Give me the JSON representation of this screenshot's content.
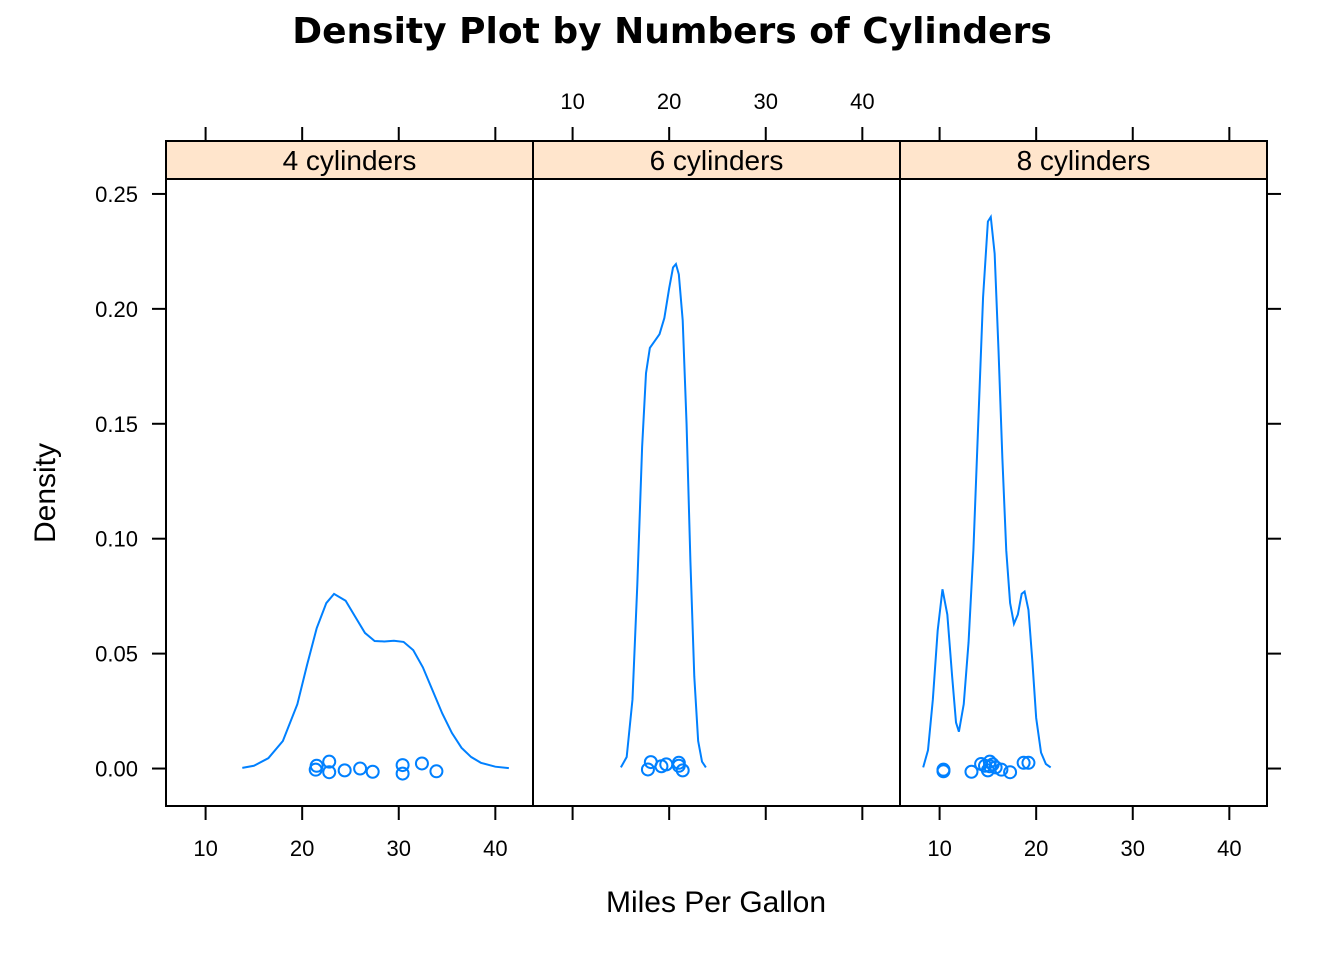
{
  "chart_data": {
    "type": "line",
    "title": "Density Plot by Numbers of Cylinders",
    "xlabel": "Miles Per Gallon",
    "ylabel": "Density",
    "xlim": [
      5.9,
      43.9
    ],
    "ylim": [
      -0.0163,
      0.2565
    ],
    "x_ticks": [
      10,
      20,
      30,
      40
    ],
    "y_ticks": [
      0.0,
      0.05,
      0.1,
      0.15,
      0.2,
      0.25
    ],
    "y_tick_labels": [
      "0.00",
      "0.05",
      "0.10",
      "0.15",
      "0.20",
      "0.25"
    ],
    "grid": false,
    "legend": "none",
    "colors": {
      "series": "#0080ff",
      "strip": "#ffe5cc",
      "frame": "#000000"
    },
    "panels": [
      {
        "strip": "4 cylinders",
        "curve": [
          [
            13.8,
            0.0003
          ],
          [
            15.0,
            0.0012
          ],
          [
            16.5,
            0.0045
          ],
          [
            18.0,
            0.012
          ],
          [
            19.5,
            0.028
          ],
          [
            20.5,
            0.045
          ],
          [
            21.5,
            0.061
          ],
          [
            22.5,
            0.072
          ],
          [
            23.3,
            0.076
          ],
          [
            24.5,
            0.073
          ],
          [
            25.5,
            0.066
          ],
          [
            26.5,
            0.059
          ],
          [
            27.5,
            0.0555
          ],
          [
            28.5,
            0.0553
          ],
          [
            29.5,
            0.0556
          ],
          [
            30.5,
            0.0551
          ],
          [
            31.5,
            0.0515
          ],
          [
            32.5,
            0.044
          ],
          [
            33.5,
            0.034
          ],
          [
            34.5,
            0.024
          ],
          [
            35.5,
            0.0155
          ],
          [
            36.5,
            0.009
          ],
          [
            37.5,
            0.005
          ],
          [
            38.5,
            0.0025
          ],
          [
            40.0,
            0.0008
          ],
          [
            41.4,
            0.0002
          ]
        ],
        "points": [
          [
            22.8,
            0.003
          ],
          [
            24.4,
            -0.0008
          ],
          [
            22.8,
            -0.0016
          ],
          [
            32.4,
            0.0022
          ],
          [
            30.4,
            0.0015
          ],
          [
            33.9,
            -0.0012
          ],
          [
            21.5,
            0.0012
          ],
          [
            27.3,
            -0.0014
          ],
          [
            26.0,
            0.0
          ],
          [
            30.4,
            -0.0022
          ],
          [
            21.4,
            -0.0005
          ]
        ]
      },
      {
        "strip": "6 cylinders",
        "curve": [
          [
            15.0,
            0.0005
          ],
          [
            15.6,
            0.005
          ],
          [
            16.2,
            0.03
          ],
          [
            16.7,
            0.08
          ],
          [
            17.2,
            0.14
          ],
          [
            17.6,
            0.172
          ],
          [
            18.0,
            0.183
          ],
          [
            18.5,
            0.186
          ],
          [
            19.0,
            0.189
          ],
          [
            19.5,
            0.196
          ],
          [
            20.0,
            0.209
          ],
          [
            20.4,
            0.218
          ],
          [
            20.7,
            0.2195
          ],
          [
            21.0,
            0.215
          ],
          [
            21.4,
            0.195
          ],
          [
            21.8,
            0.15
          ],
          [
            22.2,
            0.09
          ],
          [
            22.6,
            0.04
          ],
          [
            23.0,
            0.012
          ],
          [
            23.4,
            0.003
          ],
          [
            23.8,
            0.0005
          ]
        ],
        "points": [
          [
            21.0,
            0.0012
          ],
          [
            21.0,
            0.0025
          ],
          [
            21.4,
            -0.0008
          ],
          [
            18.1,
            0.0028
          ],
          [
            19.2,
            0.001
          ],
          [
            17.8,
            -0.0004
          ],
          [
            19.7,
            0.0018
          ]
        ]
      },
      {
        "strip": "8 cylinders",
        "curve": [
          [
            8.3,
            0.0005
          ],
          [
            8.8,
            0.008
          ],
          [
            9.3,
            0.03
          ],
          [
            9.8,
            0.06
          ],
          [
            10.3,
            0.078
          ],
          [
            10.8,
            0.067
          ],
          [
            11.3,
            0.04
          ],
          [
            11.7,
            0.02
          ],
          [
            12.0,
            0.016
          ],
          [
            12.5,
            0.028
          ],
          [
            13.0,
            0.055
          ],
          [
            13.5,
            0.095
          ],
          [
            14.0,
            0.15
          ],
          [
            14.5,
            0.205
          ],
          [
            15.0,
            0.238
          ],
          [
            15.3,
            0.24
          ],
          [
            15.7,
            0.224
          ],
          [
            16.1,
            0.182
          ],
          [
            16.5,
            0.135
          ],
          [
            16.9,
            0.095
          ],
          [
            17.3,
            0.072
          ],
          [
            17.7,
            0.063
          ],
          [
            18.1,
            0.067
          ],
          [
            18.5,
            0.076
          ],
          [
            18.8,
            0.077
          ],
          [
            19.2,
            0.069
          ],
          [
            19.6,
            0.047
          ],
          [
            20.0,
            0.022
          ],
          [
            20.5,
            0.007
          ],
          [
            21.0,
            0.002
          ],
          [
            21.5,
            0.0005
          ]
        ],
        "points": [
          [
            18.7,
            0.0025
          ],
          [
            14.3,
            0.002
          ],
          [
            16.4,
            -0.0005
          ],
          [
            17.3,
            -0.0016
          ],
          [
            15.2,
            0.001
          ],
          [
            10.4,
            -0.0005
          ],
          [
            10.4,
            -0.0012
          ],
          [
            14.7,
            0.0012
          ],
          [
            15.5,
            0.0018
          ],
          [
            15.2,
            0.003
          ],
          [
            13.3,
            -0.0014
          ],
          [
            19.2,
            0.0025
          ],
          [
            15.8,
            0.0005
          ],
          [
            15.0,
            -0.0008
          ]
        ]
      }
    ]
  }
}
